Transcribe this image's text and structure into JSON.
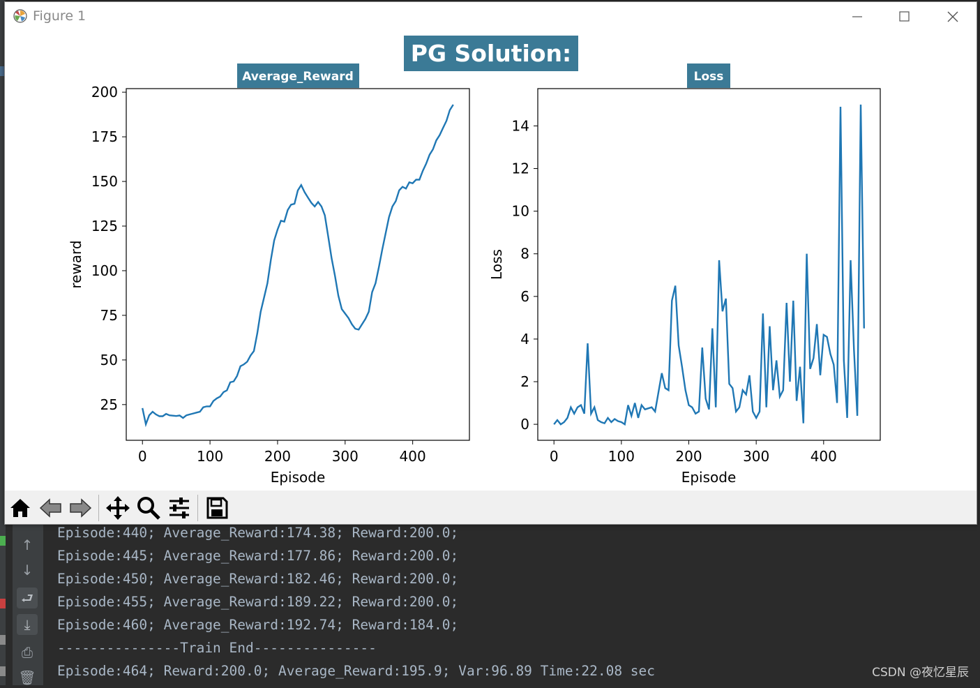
{
  "window": {
    "title": "Figure 1"
  },
  "figure": {
    "suptitle": "PG Solution:"
  },
  "chart_data": [
    {
      "type": "line",
      "title": "Average_Reward",
      "xlabel": "Episode",
      "ylabel": "reward",
      "xlim": [
        -24,
        484
      ],
      "ylim": [
        5,
        202
      ],
      "xticks": [
        "0",
        "100",
        "200",
        "300",
        "400"
      ],
      "yticks": [
        "25",
        "50",
        "75",
        "100",
        "125",
        "150",
        "175",
        "200"
      ],
      "series": [
        {
          "color": "#1f77b4",
          "x": [
            0,
            5,
            10,
            15,
            20,
            25,
            30,
            35,
            40,
            45,
            50,
            55,
            60,
            65,
            70,
            75,
            80,
            85,
            90,
            95,
            100,
            105,
            110,
            115,
            120,
            125,
            130,
            135,
            140,
            145,
            150,
            155,
            160,
            165,
            170,
            175,
            180,
            185,
            190,
            195,
            200,
            205,
            210,
            215,
            220,
            225,
            230,
            235,
            240,
            245,
            250,
            255,
            260,
            265,
            270,
            275,
            280,
            285,
            290,
            295,
            300,
            305,
            310,
            315,
            320,
            325,
            330,
            335,
            340,
            345,
            350,
            355,
            360,
            365,
            370,
            375,
            380,
            385,
            390,
            395,
            400,
            405,
            410,
            415,
            420,
            425,
            430,
            435,
            440,
            445,
            450,
            455,
            460
          ],
          "y": [
            23,
            14,
            19,
            21,
            19.5,
            18.5,
            18.5,
            19.8,
            19,
            18.8,
            18.6,
            18.9,
            17.5,
            19,
            19.5,
            20,
            20.5,
            21,
            23.5,
            24,
            24,
            27,
            28.5,
            29.5,
            32,
            33,
            37.5,
            38,
            41,
            46.5,
            47.5,
            49,
            52.5,
            55,
            65,
            77,
            85,
            93,
            106,
            117,
            123,
            128,
            127.5,
            134,
            137,
            137.5,
            145,
            148,
            144,
            141,
            138,
            136,
            138.5,
            136,
            131,
            119,
            107,
            97,
            86,
            78.5,
            76,
            73.5,
            70,
            67.5,
            67,
            70,
            73,
            77,
            88,
            93,
            102,
            112,
            121,
            130,
            136,
            139,
            145,
            147,
            146,
            149.5,
            149,
            151,
            151,
            156,
            160,
            165,
            168,
            173,
            176,
            180,
            184,
            190,
            193
          ]
        }
      ]
    },
    {
      "type": "line",
      "title": "Loss",
      "xlabel": "Episode",
      "ylabel": "Loss",
      "xlim": [
        -24,
        484
      ],
      "ylim": [
        -0.75,
        15.75
      ],
      "xticks": [
        "0",
        "100",
        "200",
        "300",
        "400"
      ],
      "yticks": [
        "0",
        "2",
        "4",
        "6",
        "8",
        "10",
        "12",
        "14"
      ],
      "series": [
        {
          "color": "#1f77b4",
          "x": [
            0,
            5,
            10,
            15,
            20,
            25,
            30,
            35,
            40,
            45,
            50,
            55,
            60,
            65,
            70,
            75,
            80,
            85,
            90,
            95,
            100,
            105,
            110,
            115,
            120,
            125,
            130,
            135,
            140,
            145,
            150,
            155,
            160,
            165,
            170,
            175,
            180,
            185,
            190,
            195,
            200,
            205,
            210,
            215,
            220,
            225,
            230,
            235,
            240,
            245,
            250,
            255,
            260,
            265,
            270,
            275,
            280,
            285,
            290,
            295,
            300,
            305,
            310,
            315,
            320,
            325,
            330,
            335,
            340,
            345,
            350,
            355,
            360,
            365,
            370,
            375,
            380,
            385,
            390,
            395,
            400,
            405,
            410,
            415,
            420,
            425,
            430,
            435,
            440,
            445,
            450,
            455,
            460
          ],
          "y": [
            0,
            0.2,
            0,
            0.1,
            0.3,
            0.8,
            0.5,
            0.8,
            0.9,
            0.5,
            3.8,
            0.5,
            0.8,
            0.2,
            0.1,
            0.05,
            0.3,
            0.1,
            0.25,
            0.15,
            0.1,
            0,
            0.9,
            0.4,
            1,
            0.3,
            0.9,
            0.7,
            0.75,
            0.8,
            0.6,
            1.5,
            2.4,
            1.7,
            1.6,
            5.8,
            6.5,
            3.7,
            2.7,
            1.6,
            0.9,
            0.8,
            0.5,
            0.6,
            3.6,
            1.2,
            0.7,
            4.5,
            0.8,
            7.7,
            5.3,
            5.9,
            1.9,
            1.7,
            0.6,
            0.8,
            1.6,
            1.4,
            2.3,
            0.6,
            0.3,
            0.6,
            5.2,
            0.8,
            4.6,
            1.6,
            3,
            1.3,
            1.6,
            5.7,
            2,
            5.8,
            1.1,
            2.7,
            0.05,
            8,
            2.6,
            3.1,
            4.7,
            2.3,
            4.2,
            4.1,
            3.3,
            2.8,
            1,
            14.9,
            3,
            0.3,
            7.7,
            3.5,
            0.4,
            15,
            4.5
          ]
        }
      ]
    }
  ],
  "toolbar": {
    "buttons": [
      {
        "name": "home"
      },
      {
        "name": "back"
      },
      {
        "name": "forward"
      },
      {
        "name": "pan"
      },
      {
        "name": "zoom"
      },
      {
        "name": "configure-subplots"
      },
      {
        "name": "save"
      }
    ]
  },
  "console": {
    "lines": [
      "Episode:440; Average_Reward:174.38; Reward:200.0;",
      "Episode:445; Average_Reward:177.86; Reward:200.0;",
      "Episode:450; Average_Reward:182.46; Reward:200.0;",
      "Episode:455; Average_Reward:189.22; Reward:200.0;",
      "Episode:460; Average_Reward:192.74; Reward:184.0;",
      "---------------Train End---------------",
      "Episode:464; Reward:200.0; Average_Reward:195.9; Var:96.89 Time:22.08 sec"
    ],
    "watermark": "CSDN @夜忆星辰"
  },
  "colors": {
    "title_bg": "#3b7a96",
    "line": "#1f77b4",
    "console_bg": "#2b2b2b",
    "console_text": "#a9b7c6"
  }
}
